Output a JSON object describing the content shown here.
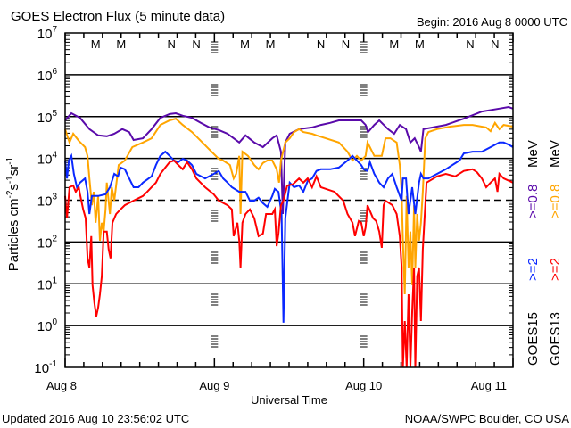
{
  "chart_data": {
    "type": "line",
    "title": "GOES Electron Flux (5 minute data)",
    "begin_label": "Begin: 2016 Aug 8 0000 UTC",
    "xlabel": "Universal Time",
    "ylabel": {
      "base": "Particles cm",
      "e1": "-2",
      "s": "s",
      "e2": "-1",
      "sr": "sr",
      "e3": "-1"
    },
    "x_unit": "hours since 2016 Aug 8 00:00 UTC",
    "xlim": [
      0,
      72
    ],
    "x_ticks": [
      {
        "hour": 0,
        "label": "Aug 8"
      },
      {
        "hour": 24,
        "label": "Aug 9"
      },
      {
        "hour": 48,
        "label": "Aug 10"
      },
      {
        "hour": 72,
        "label": "Aug 11"
      }
    ],
    "y_scale": "log10",
    "ylim_log10": [
      -1,
      7
    ],
    "y_ticks": [
      {
        "base": "10",
        "exp": "7"
      },
      {
        "base": "10",
        "exp": "6"
      },
      {
        "base": "10",
        "exp": "5"
      },
      {
        "base": "10",
        "exp": "4"
      },
      {
        "base": "10",
        "exp": "3"
      },
      {
        "base": "10",
        "exp": "2"
      },
      {
        "base": "10",
        "exp": "1"
      },
      {
        "base": "10",
        "exp": "0"
      },
      {
        "base": "10",
        "exp": "-1"
      }
    ],
    "dashed_level_log10": 3,
    "footer_left": "Updated 2016 Aug 10 23:56:02 UTC",
    "footer_right": "NOAA/SWPC Boulder, CO USA",
    "legend": {
      "position": "right-vertical",
      "columns": [
        {
          "sat": "GOES15",
          "e2": ">=2",
          "e08": ">=0.8",
          "unit": "MeV",
          "c2": "#0a28ff",
          "c08": "#5a0aaa"
        },
        {
          "sat": "GOES13",
          "e2": ">=2",
          "e08": ">=0.8",
          "unit": "MeV",
          "c2": "#ff0000",
          "c08": "#ffa500"
        }
      ]
    },
    "markers": [
      {
        "label": "M",
        "hour": 4.9,
        "color": "#ff0000"
      },
      {
        "label": "M",
        "hour": 9.0,
        "color": "#0a28ff"
      },
      {
        "label": "N",
        "hour": 17.1,
        "color": "#ff0000"
      },
      {
        "label": "N",
        "hour": 21.1,
        "color": "#0a28ff"
      },
      {
        "label": "M",
        "hour": 28.9,
        "color": "#ff0000"
      },
      {
        "label": "M",
        "hour": 33.0,
        "color": "#0a28ff"
      },
      {
        "label": "N",
        "hour": 41.1,
        "color": "#ff0000"
      },
      {
        "label": "N",
        "hour": 45.1,
        "color": "#0a28ff"
      },
      {
        "label": "M",
        "hour": 52.9,
        "color": "#ff0000"
      },
      {
        "label": "M",
        "hour": 57.0,
        "color": "#0a28ff"
      },
      {
        "label": "N",
        "hour": 65.1,
        "color": "#ff0000"
      },
      {
        "label": "N",
        "hour": 69.1,
        "color": "#0a28ff"
      }
    ],
    "series": [
      {
        "name": "GOES15 >=0.8 MeV",
        "color": "#5a0aaa",
        "x": [
          0,
          1.0,
          2.4,
          3.9,
          5.3,
          6.7,
          7.9,
          9.2,
          10.3,
          11.0,
          12.5,
          13.9,
          15.3,
          16.8,
          17.8,
          18.9,
          20.4,
          21.8,
          23.2,
          24.7,
          26.1,
          27.1,
          28.0,
          29.0,
          30.4,
          31.8,
          33.3,
          34.0,
          34.7,
          35.0,
          35.4,
          36.1,
          37.6,
          39.7,
          41.1,
          42.6,
          44.0,
          46.2,
          47.6,
          48.3,
          48.7,
          49.7,
          50.5,
          51.9,
          52.9,
          53.8,
          54.8,
          55.5,
          56.2,
          56.9,
          57.2,
          57.6,
          59.1,
          61.2,
          64.1,
          67.0,
          69.8,
          71.3,
          72.0
        ],
        "log10_flux": [
          4.91,
          5.08,
          4.97,
          4.7,
          4.55,
          4.53,
          4.59,
          4.7,
          4.63,
          4.44,
          4.48,
          4.7,
          4.97,
          5.06,
          5.08,
          5.02,
          4.97,
          4.85,
          4.74,
          4.68,
          4.59,
          4.48,
          4.38,
          4.55,
          4.38,
          4.27,
          4.48,
          4.55,
          4.16,
          2.67,
          4.38,
          4.59,
          4.7,
          4.74,
          4.8,
          4.85,
          4.91,
          4.91,
          4.91,
          4.8,
          4.63,
          4.8,
          4.91,
          4.7,
          4.59,
          4.8,
          4.7,
          4.38,
          4.48,
          4.27,
          4.16,
          4.7,
          4.74,
          4.8,
          4.95,
          5.12,
          5.19,
          5.23,
          5.19
        ]
      },
      {
        "name": "GOES13 >=0.8 MeV",
        "color": "#ffa500",
        "x": [
          0,
          0.7,
          1.3,
          2.2,
          3.2,
          3.6,
          3.9,
          4.3,
          4.6,
          4.9,
          5.3,
          5.6,
          5.9,
          6.2,
          6.5,
          6.7,
          7.2,
          7.5,
          7.9,
          8.6,
          9.6,
          10.8,
          12.5,
          13.9,
          15.3,
          16.8,
          17.8,
          18.9,
          20.4,
          21.8,
          23.2,
          24.7,
          25.4,
          26.5,
          27.1,
          27.5,
          28.0,
          28.2,
          28.5,
          29.4,
          30.4,
          31.1,
          31.8,
          32.5,
          33.3,
          34.0,
          34.4,
          34.7,
          35.4,
          36.1,
          36.8,
          37.6,
          38.3,
          39.7,
          40.4,
          41.9,
          44.0,
          45.4,
          46.2,
          46.9,
          47.6,
          48.3,
          48.6,
          49.0,
          49.7,
          50.9,
          51.5,
          52.3,
          53.3,
          53.8,
          54.1,
          54.3,
          54.6,
          54.9,
          55.2,
          55.5,
          55.8,
          56.1,
          56.3,
          56.6,
          56.9,
          57.2,
          57.5,
          57.9,
          58.4,
          59.8,
          61.9,
          64.1,
          65.5,
          67.7,
          68.4,
          69.1,
          69.8,
          70.5,
          72.0
        ],
        "log10_flux": [
          4.7,
          4.38,
          4.59,
          4.42,
          4.27,
          4.06,
          3.52,
          2.88,
          3.2,
          2.46,
          3.1,
          2.03,
          2.46,
          2.25,
          2.78,
          3.42,
          2.67,
          3.31,
          2.99,
          3.84,
          3.95,
          4.27,
          4.38,
          4.48,
          4.8,
          4.91,
          4.95,
          4.8,
          4.63,
          4.42,
          4.21,
          3.99,
          3.95,
          3.84,
          3.52,
          3.63,
          4.06,
          2.67,
          4.16,
          4.06,
          3.84,
          3.74,
          3.89,
          3.95,
          3.95,
          3.74,
          3.42,
          3.95,
          4.38,
          4.48,
          4.63,
          4.7,
          4.63,
          4.59,
          4.55,
          4.48,
          4.38,
          4.16,
          3.95,
          4.06,
          3.95,
          4.06,
          4.38,
          4.27,
          4.06,
          4.06,
          4.48,
          4.48,
          4.38,
          3.84,
          3.2,
          2.03,
          0.75,
          3.1,
          1.39,
          2.25,
          0.97,
          2.88,
          1.39,
          2.67,
          2.03,
          2.46,
          3.2,
          4.48,
          4.63,
          4.7,
          4.76,
          4.8,
          4.8,
          4.74,
          4.65,
          4.85,
          4.7,
          4.8,
          4.76
        ]
      },
      {
        "name": "GOES15 >=2 MeV",
        "color": "#0a28ff",
        "x": [
          0,
          0.3,
          0.6,
          1.0,
          1.4,
          1.9,
          2.4,
          3.2,
          3.6,
          3.9,
          4.3,
          5.3,
          6.5,
          7.2,
          7.9,
          8.5,
          8.9,
          9.6,
          10.3,
          11.0,
          11.8,
          12.5,
          13.9,
          14.6,
          15.3,
          16.1,
          16.8,
          17.5,
          18.2,
          18.9,
          19.6,
          20.4,
          21.1,
          22.5,
          23.9,
          24.7,
          25.4,
          26.1,
          26.8,
          28.0,
          29.0,
          29.7,
          30.4,
          31.1,
          31.8,
          32.5,
          33.3,
          33.7,
          34.3,
          34.8,
          35.1,
          35.4,
          36.1,
          36.8,
          37.6,
          38.3,
          39.0,
          39.7,
          40.4,
          41.1,
          42.6,
          44.0,
          45.4,
          46.2,
          46.9,
          47.6,
          48.0,
          48.6,
          49.0,
          49.7,
          50.5,
          51.2,
          51.9,
          52.6,
          53.3,
          54.1,
          54.3,
          54.8,
          55.2,
          55.8,
          56.3,
          56.9,
          57.2,
          57.6,
          58.4,
          59.8,
          61.2,
          63.4,
          64.1,
          65.5,
          67.0,
          68.4,
          69.8,
          70.5,
          71.3,
          72.0
        ],
        "log10_flux": [
          3.95,
          3.52,
          3.95,
          4.06,
          3.63,
          3.31,
          3.42,
          3.52,
          3.2,
          2.67,
          3.1,
          3.1,
          3.14,
          3.31,
          3.63,
          3.57,
          3.78,
          3.74,
          3.52,
          3.31,
          3.31,
          3.42,
          3.57,
          3.84,
          4.06,
          4.16,
          4.06,
          3.95,
          3.91,
          3.99,
          3.95,
          3.84,
          3.63,
          3.52,
          3.63,
          3.7,
          3.52,
          3.42,
          3.31,
          3.2,
          3.2,
          2.99,
          2.99,
          3.06,
          2.93,
          2.84,
          3.1,
          3.27,
          3.2,
          2.67,
          0.07,
          2.57,
          3.42,
          3.31,
          3.35,
          3.2,
          3.46,
          3.52,
          3.7,
          3.74,
          3.74,
          3.78,
          3.95,
          4.06,
          3.95,
          3.84,
          3.74,
          3.7,
          3.91,
          3.63,
          3.42,
          3.31,
          3.52,
          3.63,
          3.31,
          2.99,
          3.52,
          3.52,
          2.67,
          3.31,
          2.67,
          3.42,
          3.63,
          3.52,
          3.52,
          3.63,
          3.74,
          3.95,
          4.12,
          4.16,
          4.16,
          4.27,
          4.38,
          4.38,
          4.33,
          4.27
        ]
      },
      {
        "name": "GOES13 >=2 MeV",
        "color": "#ff0000",
        "x": [
          0,
          0.3,
          0.7,
          1.3,
          1.7,
          2.2,
          2.4,
          2.9,
          3.3,
          3.6,
          3.9,
          4.2,
          4.4,
          4.7,
          5.0,
          5.3,
          5.6,
          5.9,
          6.2,
          6.7,
          7.0,
          7.3,
          7.6,
          8.2,
          8.9,
          9.6,
          11.0,
          12.5,
          13.2,
          14.6,
          15.3,
          16.1,
          16.8,
          17.5,
          18.2,
          18.9,
          19.6,
          20.4,
          21.1,
          22.5,
          23.9,
          24.7,
          26.1,
          26.8,
          27.1,
          27.7,
          28.0,
          28.2,
          28.5,
          29.0,
          29.7,
          30.4,
          31.1,
          31.8,
          32.3,
          33.3,
          33.7,
          34.0,
          34.3,
          34.7,
          35.1,
          35.7,
          36.6,
          37.6,
          38.3,
          39.0,
          39.7,
          40.4,
          41.1,
          41.9,
          43.3,
          44.7,
          45.4,
          46.2,
          46.6,
          47.2,
          47.6,
          48.0,
          48.3,
          48.6,
          49.5,
          50.0,
          50.5,
          50.9,
          51.2,
          51.5,
          52.6,
          53.3,
          53.8,
          54.1,
          54.3,
          54.6,
          54.9,
          55.2,
          55.5,
          55.8,
          56.1,
          56.3,
          56.6,
          56.9,
          57.2,
          57.5,
          58.1,
          59.8,
          61.2,
          62.7,
          64.1,
          65.5,
          66.2,
          67.0,
          67.7,
          68.4,
          69.1,
          69.5,
          69.8,
          70.5,
          72.0
        ],
        "log10_flux": [
          3.1,
          2.57,
          3.31,
          3.35,
          3.2,
          3.31,
          3.14,
          2.78,
          2.57,
          1.61,
          1.39,
          2.14,
          0.97,
          0.54,
          0.22,
          0.43,
          0.75,
          1.18,
          2.25,
          2.25,
          1.82,
          1.61,
          2.46,
          2.67,
          2.78,
          2.88,
          2.99,
          3.1,
          3.2,
          3.42,
          3.63,
          3.78,
          3.91,
          3.95,
          3.84,
          3.74,
          3.91,
          3.74,
          3.52,
          3.31,
          3.14,
          2.99,
          2.88,
          2.78,
          2.14,
          2.46,
          2.03,
          1.39,
          2.46,
          2.67,
          2.78,
          2.57,
          2.14,
          2.2,
          2.67,
          2.67,
          2.78,
          1.9,
          2.2,
          2.88,
          2.99,
          3.35,
          3.38,
          3.52,
          3.42,
          3.52,
          3.31,
          3.57,
          3.31,
          3.27,
          3.2,
          2.99,
          2.67,
          2.46,
          2.14,
          2.5,
          2.46,
          2.14,
          2.35,
          2.88,
          2.57,
          2.5,
          2.25,
          1.86,
          2.88,
          2.99,
          2.88,
          2.67,
          2.14,
          1.39,
          -1.0,
          0.11,
          -1.0,
          0.75,
          -1.0,
          0.33,
          1.39,
          -1.0,
          1.18,
          1.39,
          0.11,
          1.82,
          3.42,
          3.57,
          3.63,
          3.57,
          3.7,
          3.74,
          3.67,
          3.52,
          3.31,
          3.42,
          3.52,
          3.2,
          3.63,
          3.52,
          3.42
        ]
      }
    ]
  }
}
